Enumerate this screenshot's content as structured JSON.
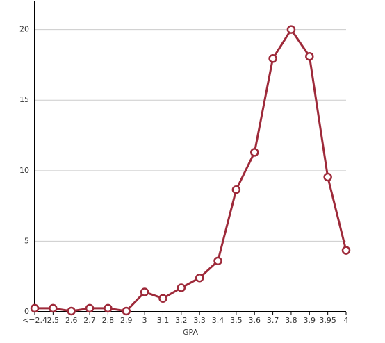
{
  "chart_data": {
    "type": "line",
    "x_label": "GPA",
    "categories": [
      "<=2.4",
      "2.5",
      "2.6",
      "2.7",
      "2.8",
      "2.9",
      "3",
      "3.1",
      "3.2",
      "3.3",
      "3.4",
      "3.5",
      "3.6",
      "3.7",
      "3.8",
      "3.9",
      "3.95",
      "4"
    ],
    "values": [
      0.25,
      0.25,
      0.05,
      0.25,
      0.25,
      0.05,
      1.4,
      0.95,
      1.7,
      2.4,
      3.6,
      8.65,
      11.3,
      17.95,
      20,
      18.1,
      9.55,
      4.35
    ],
    "color": "#9e2a3a",
    "ylim": [
      0,
      22
    ],
    "yticks": [
      0,
      5,
      10,
      15,
      20
    ],
    "grid": true
  }
}
